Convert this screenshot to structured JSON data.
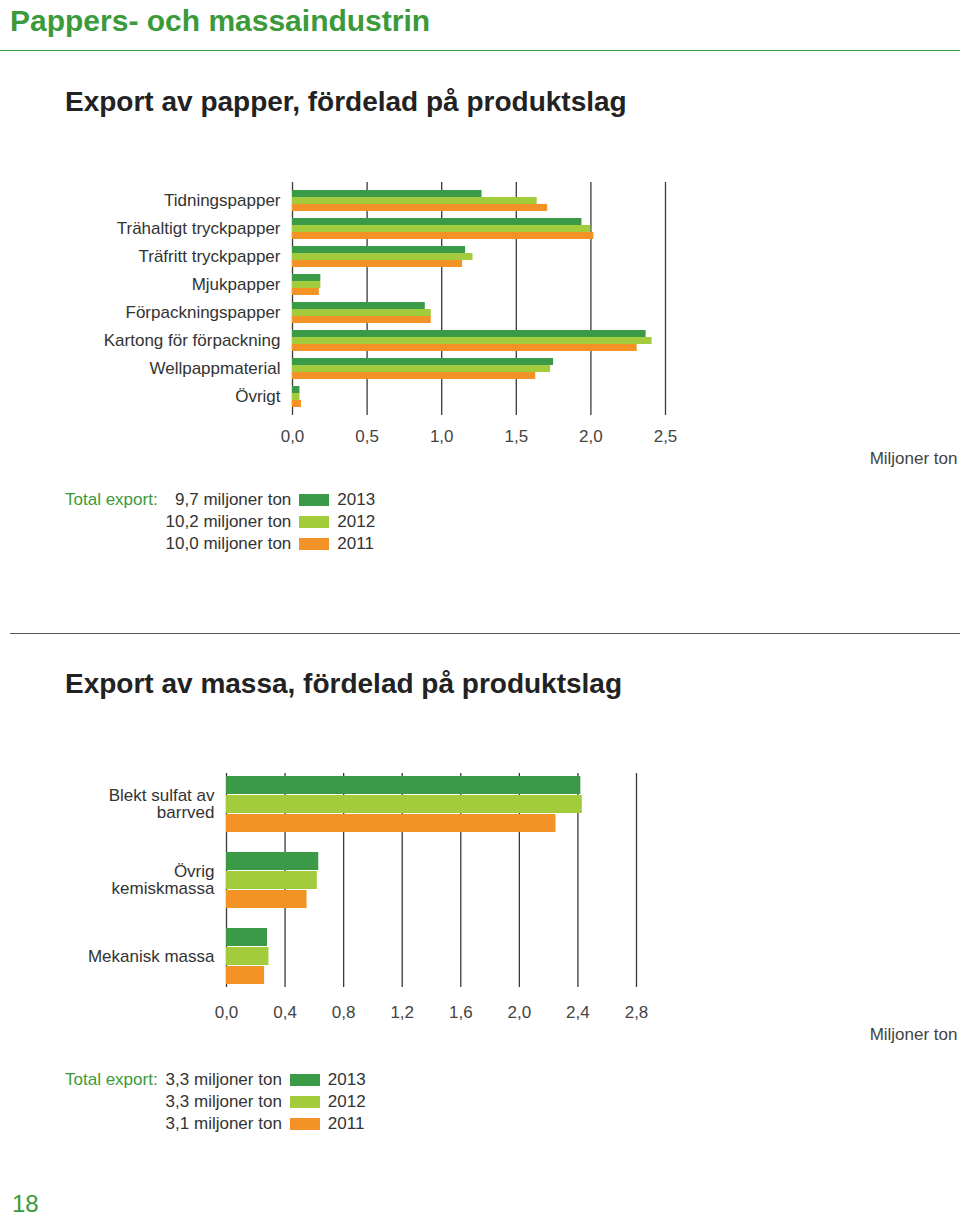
{
  "header": "Pappers- och massaindustrin",
  "page_number": "18",
  "chart_data": [
    {
      "type": "bar",
      "title": "Export av papper, fördelad på produktslag",
      "orientation": "horizontal",
      "categories": [
        "Tidningspapper",
        "Trähaltigt tryckpapper",
        "Träfritt tryckpapper",
        "Mjukpapper",
        "Förpackningspapper",
        "Kartong för förpackning",
        "Wellpappmaterial",
        "Övrigt"
      ],
      "series": [
        {
          "name": "2013",
          "color": "#3a9a47",
          "total": "9,7 miljoner ton",
          "values": [
            1.27,
            1.94,
            1.16,
            0.19,
            0.89,
            2.37,
            1.75,
            0.05
          ]
        },
        {
          "name": "2012",
          "color": "#a3cc3d",
          "total": "10,2 miljoner ton",
          "values": [
            1.64,
            2.0,
            1.21,
            0.19,
            0.93,
            2.41,
            1.73,
            0.05
          ]
        },
        {
          "name": "2011",
          "color": "#f39325",
          "total": "10,0 miljoner ton",
          "values": [
            1.71,
            2.02,
            1.14,
            0.18,
            0.93,
            2.31,
            1.63,
            0.06
          ]
        }
      ],
      "x_label": "Miljoner ton",
      "xlim": [
        0,
        2.5
      ],
      "xticks": [
        {
          "value": 0,
          "label": "0,0"
        },
        {
          "value": 0.5,
          "label": "0,5"
        },
        {
          "value": 1,
          "label": "1,0"
        },
        {
          "value": 1.5,
          "label": "1,5"
        },
        {
          "value": 2,
          "label": "2,0"
        },
        {
          "value": 2.5,
          "label": "2,5"
        }
      ],
      "grid": true,
      "legend": "bottom-left",
      "legend_title": "Total export:"
    },
    {
      "type": "bar",
      "title": "Export av massa, fördelad på produktslag",
      "orientation": "horizontal",
      "categories": [
        "Blekt sulfat av barrved",
        "Övrig kemiskmassa",
        "Mekanisk massa"
      ],
      "series": [
        {
          "name": "2013",
          "color": "#3a9a47",
          "total": "3,3 miljoner ton",
          "values": [
            2.42,
            0.63,
            0.28
          ]
        },
        {
          "name": "2012",
          "color": "#a3cc3d",
          "total": "3,3 miljoner ton",
          "values": [
            2.43,
            0.62,
            0.29
          ]
        },
        {
          "name": "2011",
          "color": "#f39325",
          "total": "3,1 miljoner ton",
          "values": [
            2.25,
            0.55,
            0.26
          ]
        }
      ],
      "x_label": "Miljoner ton",
      "xlim": [
        0,
        2.8
      ],
      "xticks": [
        {
          "value": 0,
          "label": "0,0"
        },
        {
          "value": 0.4,
          "label": "0,4"
        },
        {
          "value": 0.8,
          "label": "0,8"
        },
        {
          "value": 1.2,
          "label": "1,2"
        },
        {
          "value": 1.6,
          "label": "1,6"
        },
        {
          "value": 2.0,
          "label": "2,0"
        },
        {
          "value": 2.4,
          "label": "2,4"
        },
        {
          "value": 2.8,
          "label": "2,8"
        }
      ],
      "grid": true,
      "legend": "bottom-left",
      "legend_title": "Total export:"
    }
  ]
}
